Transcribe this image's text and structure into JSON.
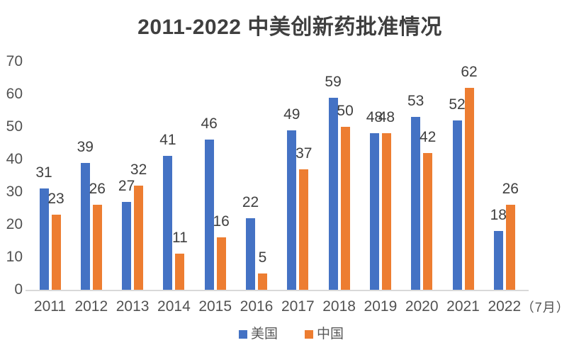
{
  "chart_data": {
    "type": "bar",
    "title": "2011-2022 中美创新药批准情况",
    "categories": [
      "2011",
      "2012",
      "2013",
      "2014",
      "2015",
      "2016",
      "2017",
      "2018",
      "2019",
      "2020",
      "2021",
      "2022"
    ],
    "x_axis_suffix": "（7月）",
    "series": [
      {
        "key": "usa",
        "name": "美国",
        "color": "#4472C4",
        "values": [
          31,
          39,
          27,
          41,
          46,
          22,
          49,
          59,
          48,
          53,
          52,
          18
        ]
      },
      {
        "key": "china",
        "name": "中国",
        "color": "#ED7D31",
        "values": [
          23,
          26,
          32,
          11,
          16,
          5,
          37,
          50,
          48,
          42,
          62,
          26
        ]
      }
    ],
    "ylim": [
      0,
      70
    ],
    "yticks": [
      0,
      10,
      20,
      30,
      40,
      50,
      60,
      70
    ],
    "xlabel": "",
    "ylabel": "",
    "grid": false,
    "data_labels": true,
    "legend_position": "bottom"
  },
  "colors": {
    "usa_bar": "#4472C4",
    "china_bar": "#ED7D31",
    "axis_line": "#d9d9d9"
  }
}
